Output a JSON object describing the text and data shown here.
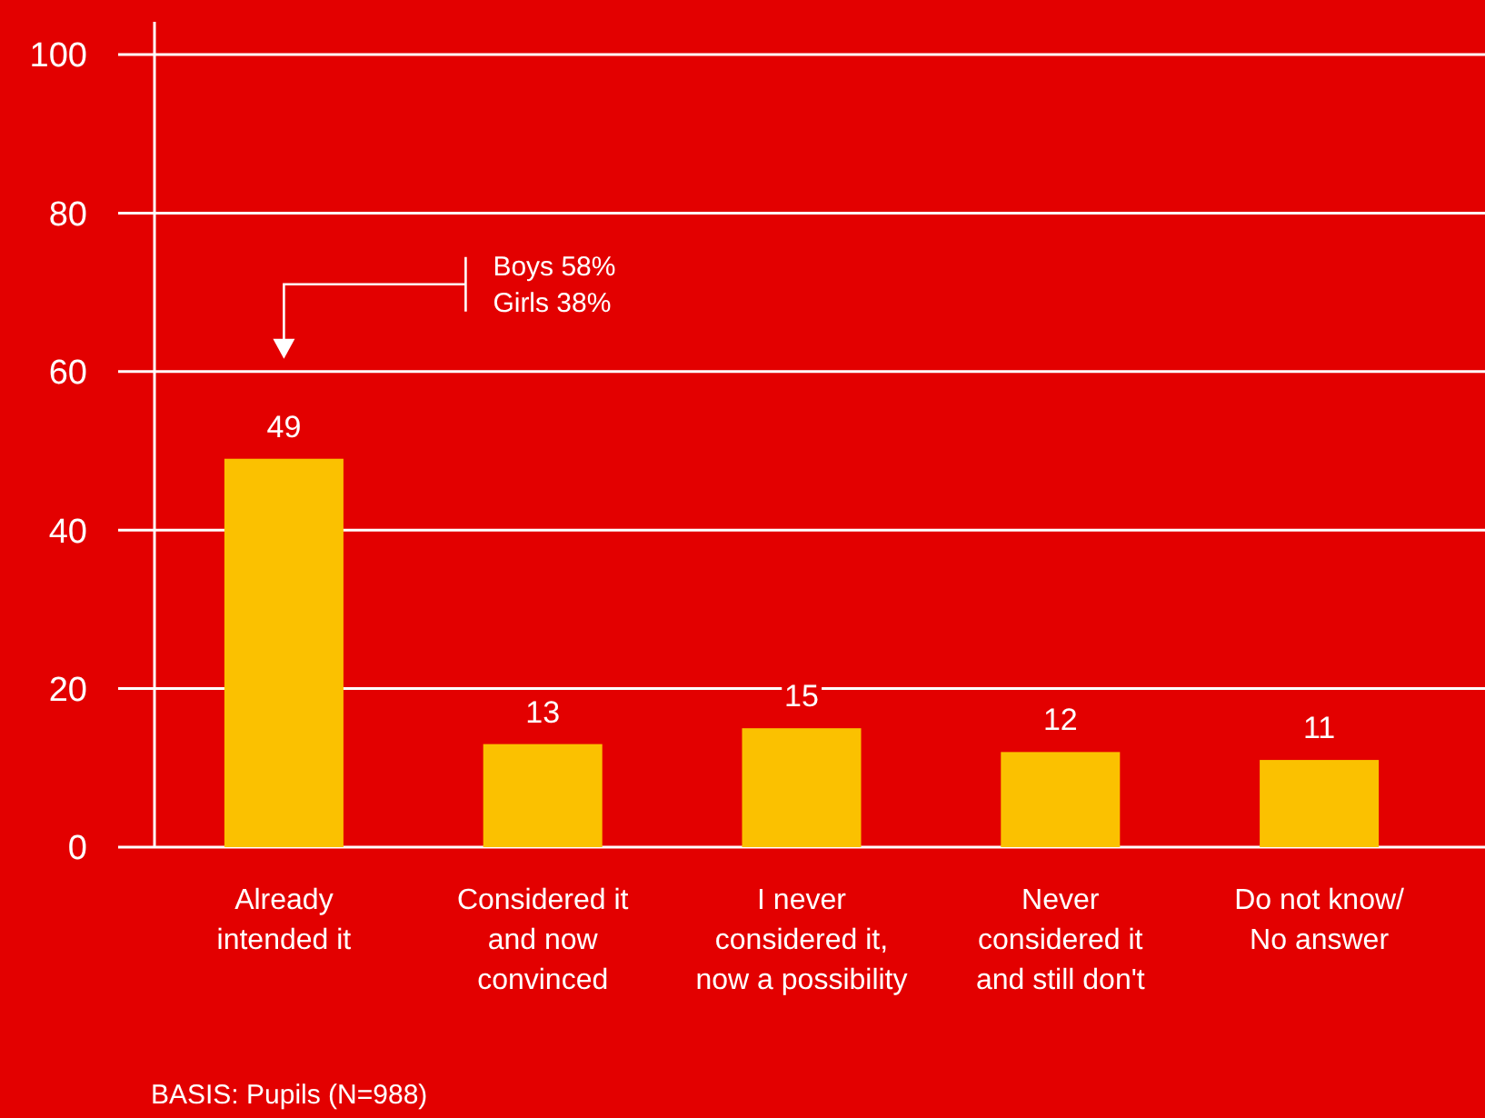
{
  "chart_data": {
    "type": "bar",
    "categories": [
      "Already\nintended it",
      "Considered it\nand now\nconvinced",
      "I never\nconsidered it,\nnow a possibility",
      "Never\nconsidered it\nand still don't",
      "Do not know/\nNo answer"
    ],
    "values": [
      49,
      13,
      15,
      12,
      11
    ],
    "color": "#fbc100",
    "data_labels": true,
    "ylim": [
      0,
      100
    ],
    "yticks": [
      0,
      20,
      40,
      60,
      80,
      100
    ],
    "grid": "y",
    "annotations": [
      "Boys 58%\nGirls 38%",
      "BASIS: Pupils (N=988)"
    ]
  }
}
